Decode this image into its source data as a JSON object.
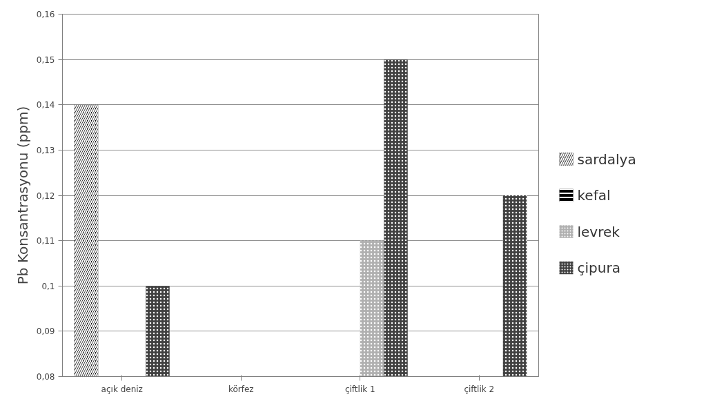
{
  "chart_data": {
    "type": "bar",
    "ylabel": "Pb Konsantrasyonu (ppm)",
    "categories": [
      "açık deniz",
      "körfez",
      "çiftlik 1",
      "çiftlik 2"
    ],
    "series": [
      {
        "name": "sardalya",
        "color": "#000000",
        "values": [
          0.14,
          null,
          null,
          null
        ]
      },
      {
        "name": "kefal",
        "color": "#000000",
        "values": [
          null,
          null,
          null,
          null
        ]
      },
      {
        "name": "levrek",
        "color": "#b0b0b0",
        "values": [
          null,
          null,
          0.11,
          null
        ]
      },
      {
        "name": "çipura",
        "color": "#404040",
        "values": [
          0.1,
          null,
          0.15,
          0.12
        ]
      }
    ],
    "ylim": [
      0.08,
      0.16
    ],
    "yticks": [
      {
        "value": 0.08,
        "label": "0,08"
      },
      {
        "value": 0.09,
        "label": "0,09"
      },
      {
        "value": 0.1,
        "label": "0,1"
      },
      {
        "value": 0.11,
        "label": "0,11"
      },
      {
        "value": 0.12,
        "label": "0,12"
      },
      {
        "value": 0.13,
        "label": "0,13"
      },
      {
        "value": 0.14,
        "label": "0,14"
      },
      {
        "value": 0.15,
        "label": "0,15"
      },
      {
        "value": 0.16,
        "label": "0,16"
      }
    ],
    "grid": "y",
    "legend": "right"
  }
}
